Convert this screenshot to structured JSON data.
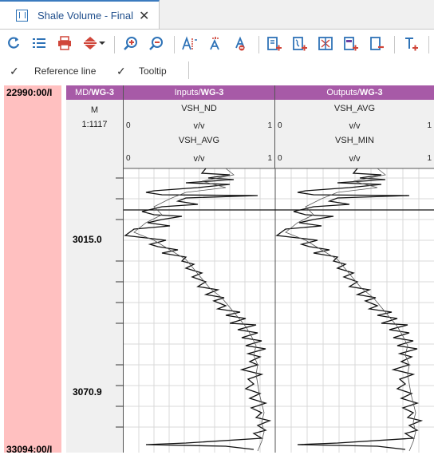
{
  "tab": {
    "title": "Shale Volume - Final",
    "close": "✕"
  },
  "toolbar": {
    "icons": [
      "refresh-icon",
      "list-icon",
      "print-icon",
      "sort-icon",
      "zoom-in-icon",
      "zoom-out-icon",
      "font-a-icon",
      "font-a-up-icon",
      "font-a-down-icon",
      "add-track-icon",
      "add-curve-icon",
      "track-settings-icon",
      "add-fill-icon",
      "remove-track-icon",
      "add-text-icon"
    ]
  },
  "options": {
    "reference_line": "Reference line",
    "tooltip": "Tooltip",
    "check": "✓"
  },
  "depth_range": {
    "top": "22990:00/I",
    "bottom": "33094:00/I"
  },
  "tracks": {
    "md": {
      "header": "MD/",
      "well": "WG-3",
      "unit": "M",
      "scale": "1:1117"
    },
    "inputs": {
      "header": "Inputs/",
      "well": "WG-3",
      "curves": [
        {
          "name": "VSH_ND",
          "min": "0",
          "unit": "v/v",
          "max": "1"
        },
        {
          "name": "VSH_AVG",
          "min": "0",
          "unit": "v/v",
          "max": "1"
        }
      ]
    },
    "outputs": {
      "header": "Outputs/",
      "well": "WG-3",
      "curves": [
        {
          "name": "VSH_AVG",
          "min": "0",
          "unit": "v/v",
          "max": "1"
        },
        {
          "name": "VSH_MIN",
          "min": "0",
          "unit": "v/v",
          "max": "1"
        }
      ]
    }
  },
  "depth_labels": [
    "3015.0",
    "3070.9"
  ]
}
